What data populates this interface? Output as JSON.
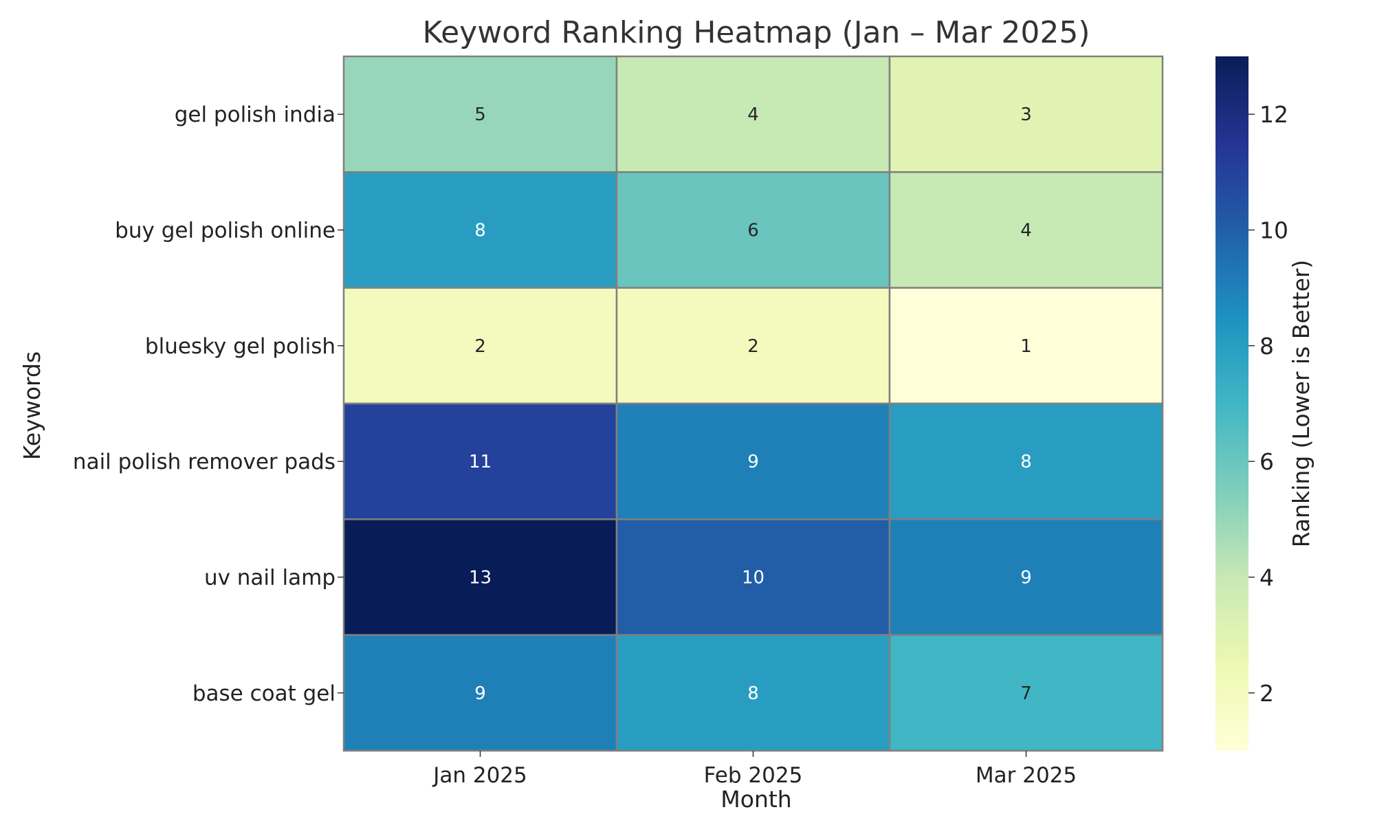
{
  "chart_data": {
    "type": "heatmap",
    "title": "Keyword Ranking Heatmap (Jan – Mar 2025)",
    "xlabel": "Month",
    "ylabel": "Keywords",
    "x_categories": [
      "Jan 2025",
      "Feb 2025",
      "Mar 2025"
    ],
    "y_categories": [
      "gel polish india",
      "buy gel polish online",
      "bluesky gel polish",
      "nail polish remover pads",
      "uv nail lamp",
      "base coat gel"
    ],
    "values": [
      [
        5,
        4,
        3
      ],
      [
        8,
        6,
        4
      ],
      [
        2,
        2,
        1
      ],
      [
        11,
        9,
        8
      ],
      [
        13,
        10,
        9
      ],
      [
        9,
        8,
        7
      ]
    ],
    "annotations": true,
    "colorbar": {
      "label": "Ranking (Lower is Better)",
      "range": [
        1,
        13
      ],
      "ticks": [
        2,
        4,
        6,
        8,
        10,
        12
      ],
      "colormap": "YlGnBu"
    },
    "grid_line_color": "#808080"
  }
}
